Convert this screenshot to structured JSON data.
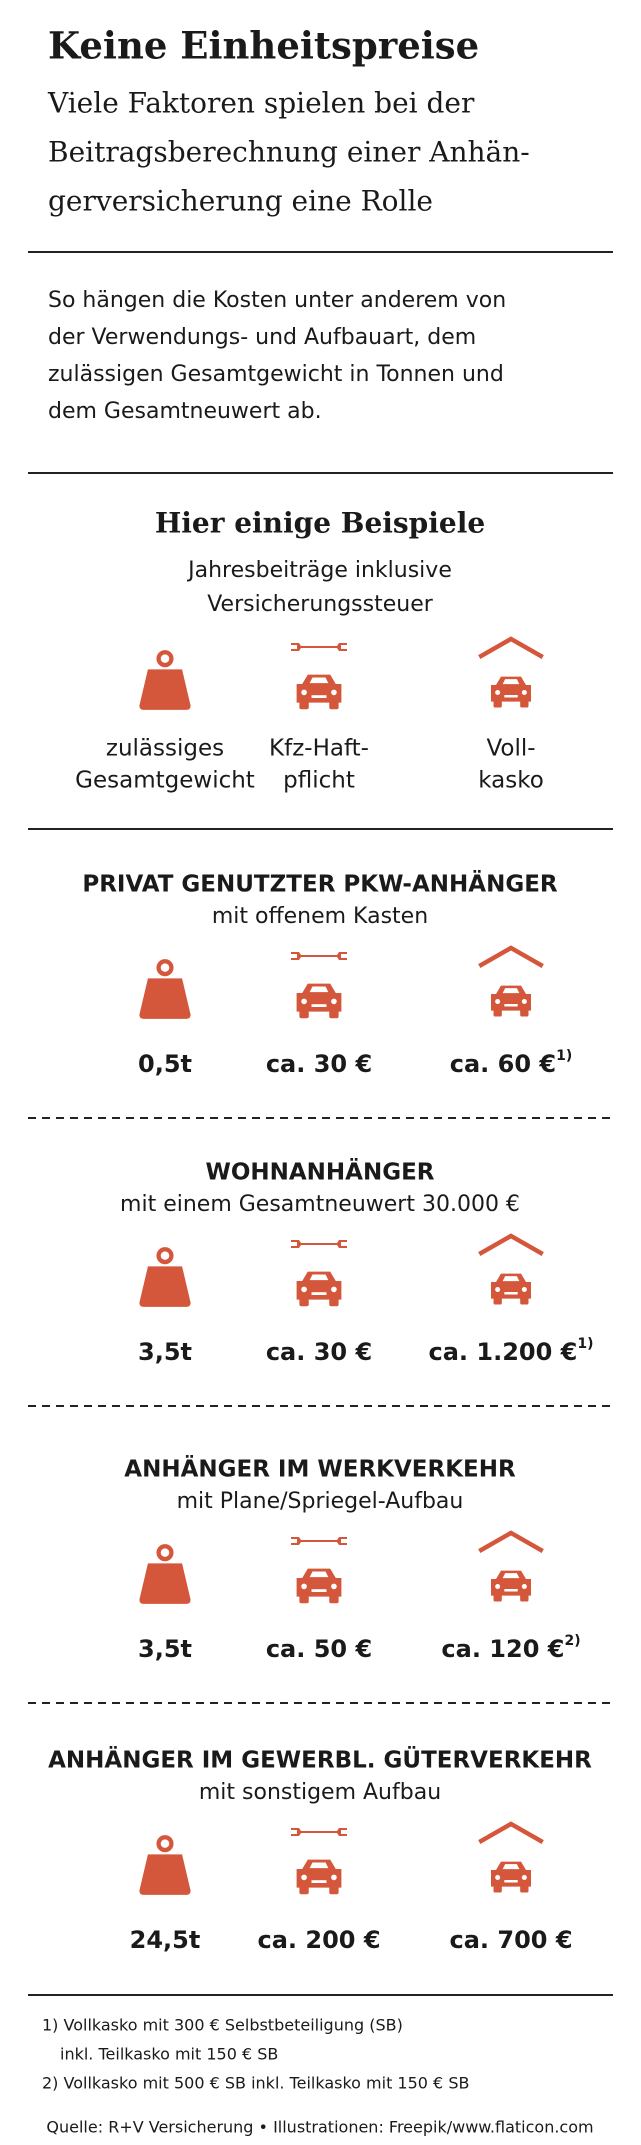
{
  "header": {
    "title": "Keine Einheitspreise",
    "subtitle_lines": [
      "Viele Faktoren spielen bei der",
      "Beitragsberechnung einer Anhän-",
      "gerversicherung eine Rolle"
    ]
  },
  "intro_lines": [
    "So hängen die Kosten unter anderem von",
    "der Verwendungs- und Aufbauart, dem",
    "zulässigen Gesamtgewicht in Tonnen und",
    "dem Gesamtneuwert ab."
  ],
  "examples": {
    "title": "Hier einige Beispiele",
    "subtitle_lines": [
      "Jahresbeiträge inklusive",
      "Versicherungssteuer"
    ],
    "legend": [
      [
        "zulässiges",
        "Gesamtgewicht"
      ],
      [
        "Kfz-Haft-",
        "pflicht"
      ],
      [
        "Voll-",
        "kasko"
      ]
    ]
  },
  "sections": [
    {
      "title": "PRIVAT GENUTZTER PKW-ANHÄNGER",
      "subtitle": "mit offenem Kasten",
      "values": [
        "0,5t",
        "ca. 30 €",
        "ca. 60 €"
      ],
      "note": "1)"
    },
    {
      "title": "WOHNANHÄNGER",
      "subtitle": "mit einem Gesamtneuwert 30.000 €",
      "values": [
        "3,5t",
        "ca. 30 €",
        "ca. 1.200 €"
      ],
      "note": "1)"
    },
    {
      "title": "ANHÄNGER IM WERKVERKEHR",
      "subtitle": "mit Plane/Spriegel-Aufbau",
      "values": [
        "3,5t",
        "ca. 50 €",
        "ca. 120 €"
      ],
      "note": "2)"
    },
    {
      "title": "ANHÄNGER IM GEWERBL. GÜTERVERKEHR",
      "subtitle": "mit sonstigem Aufbau",
      "values": [
        "24,5t",
        "ca. 200 €",
        "ca. 700 €"
      ]
    }
  ],
  "footnotes": [
    "1) Vollkasko mit 300 € Selbstbeteiligung (SB)",
    "inkl. Teilkasko mit 150 € SB",
    "2) Vollkasko mit 500 € SB inkl. Teilkasko mit 150 € SB"
  ],
  "source": "Quelle: R+V Versicherung • Illustrationen: Freepik/www.flaticon.com"
}
